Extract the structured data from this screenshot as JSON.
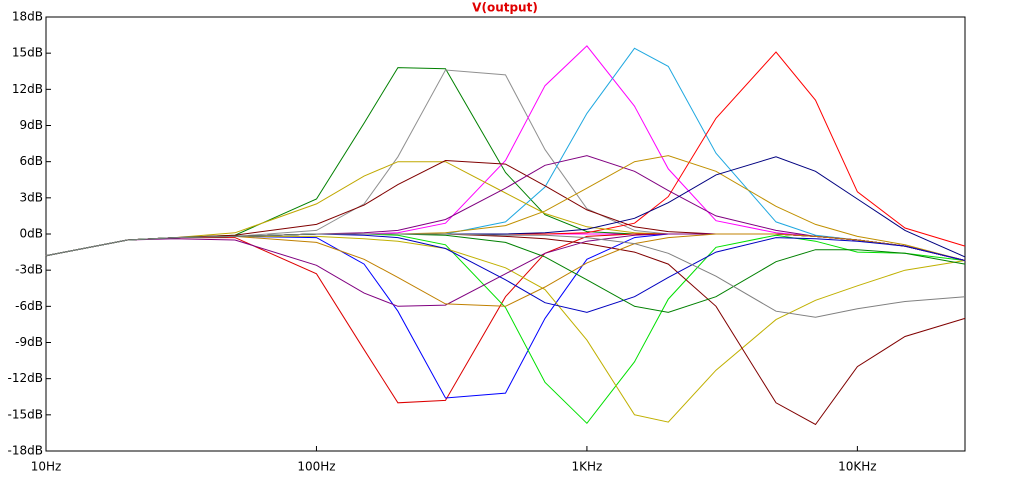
{
  "chart_data": {
    "type": "line",
    "title": "V(output)",
    "x_scale": "log",
    "x": [
      10,
      20,
      30,
      50,
      100,
      150,
      200,
      300,
      500,
      700,
      1000,
      1500,
      2000,
      3000,
      5000,
      7000,
      10000,
      15000,
      25000
    ],
    "xlim": [
      10,
      25000
    ],
    "xticks": [
      {
        "value": 10,
        "label": "10Hz"
      },
      {
        "value": 100,
        "label": "100Hz"
      },
      {
        "value": 1000,
        "label": "1KHz"
      },
      {
        "value": 10000,
        "label": "10KHz"
      }
    ],
    "ylim": [
      -18,
      18
    ],
    "yticks": [
      {
        "value": 18,
        "label": "18dB"
      },
      {
        "value": 15,
        "label": "15dB"
      },
      {
        "value": 12,
        "label": "12dB"
      },
      {
        "value": 9,
        "label": "9dB"
      },
      {
        "value": 6,
        "label": "6dB"
      },
      {
        "value": 3,
        "label": "3dB"
      },
      {
        "value": 0,
        "label": "0dB"
      },
      {
        "value": -3,
        "label": "-3dB"
      },
      {
        "value": -6,
        "label": "-6dB"
      },
      {
        "value": -9,
        "label": "-9dB"
      },
      {
        "value": -12,
        "label": "-12dB"
      },
      {
        "value": -15,
        "label": "-15dB"
      },
      {
        "value": -18,
        "label": "-18dB"
      }
    ],
    "series": [
      {
        "color": "#ff00ff",
        "values": [
          -1.8,
          -0.5,
          -0.3,
          -0.2,
          0,
          0,
          0,
          0,
          0,
          0,
          0,
          0,
          0,
          0,
          0,
          -0.2,
          -0.5,
          -1.0,
          -2.2
        ]
      },
      {
        "color": "#008000",
        "values": [
          -1.8,
          -0.5,
          -0.3,
          -0.1,
          2.9,
          9.2,
          13.8,
          13.7,
          5.1,
          1.6,
          0.2,
          0,
          0,
          0,
          0,
          -0.2,
          -0.5,
          -1.0,
          -2.2
        ]
      },
      {
        "color": "#909090",
        "values": [
          -1.8,
          -0.5,
          -0.3,
          -0.2,
          0.3,
          2.5,
          6.4,
          13.6,
          13.2,
          7.0,
          2.1,
          0.3,
          0,
          0,
          0,
          -0.2,
          -0.5,
          -1.0,
          -2.2
        ]
      },
      {
        "color": "#ff00ff",
        "values": [
          -1.8,
          -0.5,
          -0.3,
          -0.2,
          0,
          0,
          0.1,
          0.9,
          6.1,
          12.3,
          15.6,
          10.6,
          5.4,
          1.1,
          0.1,
          -0.2,
          -0.5,
          -1.0,
          -2.2
        ]
      },
      {
        "color": "#20a8e0",
        "values": [
          -1.8,
          -0.5,
          -0.3,
          -0.2,
          0,
          0,
          0,
          0,
          1.0,
          3.9,
          10.0,
          15.4,
          13.9,
          6.7,
          1.0,
          -0.1,
          -0.5,
          -1.0,
          -2.2
        ]
      },
      {
        "color": "#ff0000",
        "values": [
          -1.8,
          -0.5,
          -0.3,
          -0.2,
          0,
          0,
          0,
          0,
          0,
          0,
          0.1,
          0.9,
          3.1,
          9.6,
          15.1,
          11.1,
          3.5,
          0.5,
          -1.0
        ]
      },
      {
        "color": "#c0a800",
        "values": [
          -1.8,
          -0.5,
          -0.3,
          0.1,
          2.5,
          4.8,
          6.0,
          6.0,
          3.4,
          1.7,
          0.6,
          0.1,
          0,
          0,
          0,
          -0.2,
          -0.5,
          -1.0,
          -2.2
        ]
      },
      {
        "color": "#800000",
        "values": [
          -1.8,
          -0.5,
          -0.3,
          -0.1,
          0.8,
          2.4,
          4.1,
          6.1,
          5.8,
          4.0,
          2.0,
          0.6,
          0.2,
          0,
          0,
          -0.2,
          -0.5,
          -1.0,
          -2.2
        ]
      },
      {
        "color": "#800080",
        "values": [
          -1.8,
          -0.5,
          -0.3,
          -0.2,
          0,
          0.1,
          0.3,
          1.2,
          3.8,
          5.7,
          6.5,
          5.2,
          3.6,
          1.5,
          0.3,
          -0.2,
          -0.5,
          -1.0,
          -2.2
        ]
      },
      {
        "color": "#c09000",
        "values": [
          -1.8,
          -0.5,
          -0.3,
          -0.2,
          0,
          0,
          0,
          0.1,
          0.7,
          1.9,
          3.8,
          6.0,
          6.5,
          5.2,
          2.3,
          0.8,
          -0.2,
          -0.9,
          -2.2
        ]
      },
      {
        "color": "#000080",
        "values": [
          -1.8,
          -0.5,
          -0.3,
          -0.2,
          0,
          0,
          0,
          0,
          0,
          0.1,
          0.4,
          1.3,
          2.6,
          4.9,
          6.4,
          5.2,
          2.9,
          0.3,
          -1.9
        ]
      },
      {
        "color": "#dd0000",
        "values": [
          -1.8,
          -0.5,
          -0.3,
          -0.3,
          -3.3,
          -9.6,
          -14.0,
          -13.8,
          -5.2,
          -1.6,
          -0.2,
          0,
          0,
          0,
          0,
          -0.2,
          -0.5,
          -1.0,
          -2.2
        ]
      },
      {
        "color": "#0000ff",
        "values": [
          -1.8,
          -0.5,
          -0.3,
          -0.2,
          -0.3,
          -2.5,
          -6.4,
          -13.6,
          -13.2,
          -7.0,
          -2.1,
          -0.3,
          0,
          0,
          0,
          -0.2,
          -0.5,
          -1.0,
          -2.2
        ]
      },
      {
        "color": "#00e000",
        "values": [
          -1.8,
          -0.5,
          -0.3,
          -0.2,
          0,
          0,
          -0.1,
          -0.9,
          -6.1,
          -12.3,
          -15.7,
          -10.6,
          -5.4,
          -1.1,
          -0.1,
          -0.6,
          -1.5,
          -1.6,
          -2.2
        ]
      },
      {
        "color": "#c0b000",
        "values": [
          -1.8,
          -0.5,
          -0.3,
          -0.2,
          -0.2,
          -0.4,
          -0.6,
          -1.2,
          -2.8,
          -4.6,
          -8.8,
          -15.0,
          -15.6,
          -11.3,
          -7.1,
          -5.5,
          -4.3,
          -3.0,
          -2.2
        ]
      },
      {
        "color": "#800000",
        "values": [
          -1.8,
          -0.5,
          -0.3,
          -0.2,
          0,
          0,
          0,
          0,
          -0.2,
          -0.4,
          -0.8,
          -1.5,
          -2.5,
          -6.0,
          -14.0,
          -15.8,
          -11.0,
          -8.5,
          -7.0
        ]
      },
      {
        "color": "#800080",
        "values": [
          -1.8,
          -0.5,
          -0.4,
          -0.5,
          -2.6,
          -4.9,
          -6.0,
          -5.9,
          -3.3,
          -1.6,
          -0.6,
          -0.1,
          0,
          0,
          0,
          -0.2,
          -0.5,
          -1.0,
          -2.2
        ]
      },
      {
        "color": "#c08000",
        "values": [
          -1.8,
          -0.5,
          -0.3,
          -0.2,
          -0.7,
          -2.1,
          -3.6,
          -5.8,
          -6.0,
          -4.4,
          -2.4,
          -0.8,
          -0.3,
          0,
          0,
          -0.2,
          -0.5,
          -1.0,
          -2.2
        ]
      },
      {
        "color": "#0000c0",
        "values": [
          -1.8,
          -0.5,
          -0.3,
          -0.2,
          0,
          -0.1,
          -0.3,
          -1.2,
          -3.8,
          -5.7,
          -6.5,
          -5.2,
          -3.6,
          -1.5,
          -0.3,
          -0.4,
          -0.6,
          -1.0,
          -2.2
        ]
      },
      {
        "color": "#008000",
        "values": [
          -1.8,
          -0.5,
          -0.3,
          -0.2,
          0,
          0,
          0,
          -0.1,
          -0.7,
          -1.9,
          -3.8,
          -6.0,
          -6.5,
          -5.2,
          -2.3,
          -1.3,
          -1.3,
          -1.6,
          -2.5
        ]
      },
      {
        "color": "#808080",
        "values": [
          -1.8,
          -0.5,
          -0.3,
          -0.2,
          0,
          0,
          0,
          0,
          -0.1,
          -0.1,
          -0.3,
          -0.8,
          -1.6,
          -3.5,
          -6.4,
          -6.9,
          -6.2,
          -5.6,
          -5.2
        ]
      }
    ]
  }
}
